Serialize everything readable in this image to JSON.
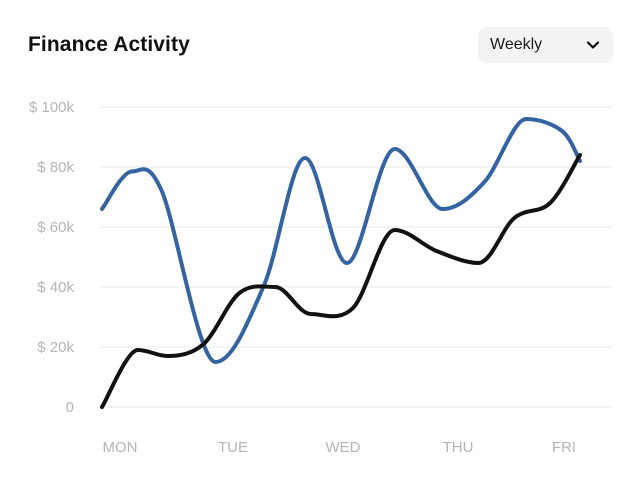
{
  "card": {
    "title": "Finance Activity",
    "period": {
      "selected": "Weekly",
      "icon": "chevron-down-icon"
    }
  },
  "chart_data": {
    "type": "line",
    "title": "Finance Activity",
    "xlabel": "",
    "ylabel": "",
    "x_tick_labels": [
      "MON",
      "TUE",
      "WED",
      "THU",
      "FRI"
    ],
    "x_range": [
      0,
      4
    ],
    "y_tick_labels": [
      "0",
      "$ 20k",
      "$ 40k",
      "$ 60k",
      "$ 80k",
      "$ 100k"
    ],
    "y_ticks": [
      0,
      20000,
      40000,
      60000,
      80000,
      100000
    ],
    "ylim": [
      0,
      100000
    ],
    "grid": true,
    "curve": "smooth",
    "legend": "none",
    "series": [
      {
        "color": "#3463a1",
        "x": [
          0,
          0.25,
          0.5,
          0.95,
          1.35,
          1.7,
          2.05,
          2.45,
          2.85,
          3.2,
          3.55,
          3.85,
          4.0
        ],
        "y": [
          66000,
          78500,
          72000,
          15000,
          40000,
          83000,
          48000,
          86000,
          66000,
          75000,
          96000,
          92000,
          82000
        ]
      },
      {
        "color": "#111111",
        "x": [
          0,
          0.3,
          0.55,
          0.85,
          1.15,
          1.45,
          1.75,
          2.1,
          2.45,
          2.8,
          3.15,
          3.45,
          3.75,
          4.0
        ],
        "y": [
          0,
          19000,
          17000,
          21000,
          38000,
          40000,
          31000,
          33000,
          59000,
          52000,
          48000,
          63000,
          68000,
          84000
        ]
      }
    ]
  }
}
